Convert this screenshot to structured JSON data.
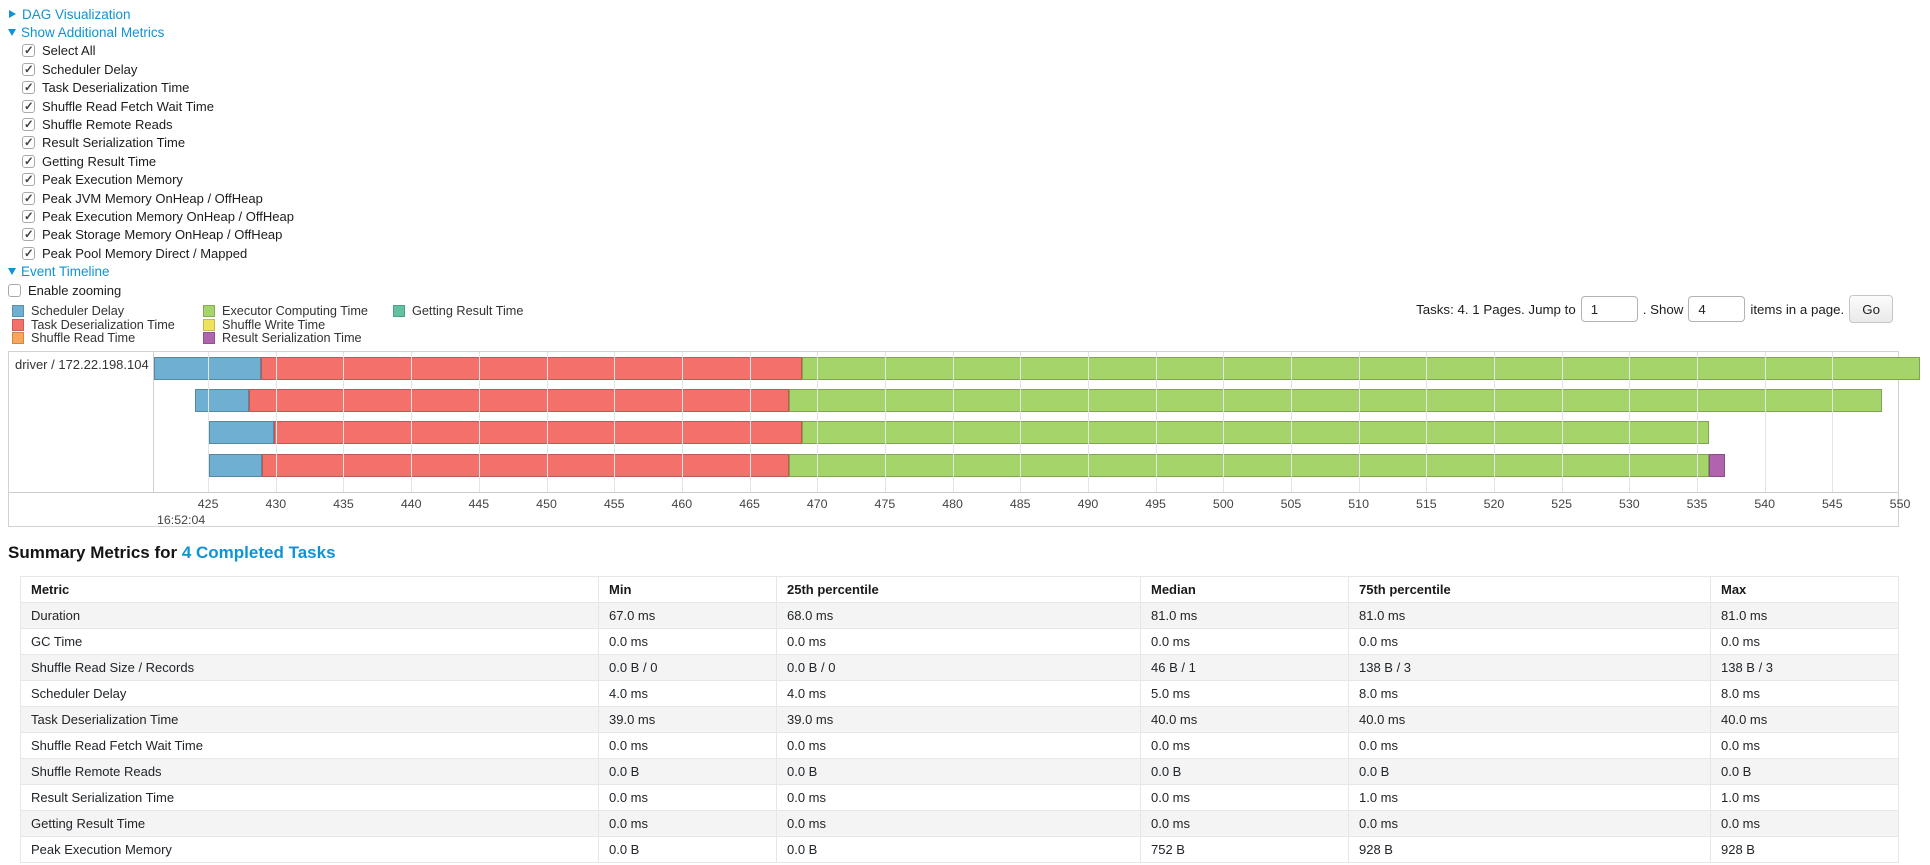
{
  "accent": {
    "link_blue": "#1093d5"
  },
  "controls": {
    "dag_toggle": {
      "label": "DAG Visualization",
      "state": "collapsed"
    },
    "metrics_toggle": {
      "label": "Show Additional Metrics",
      "state": "expanded"
    },
    "metric_checkboxes": [
      {
        "label": "Select All",
        "checked": true
      },
      {
        "label": "Scheduler Delay",
        "checked": true
      },
      {
        "label": "Task Deserialization Time",
        "checked": true
      },
      {
        "label": "Shuffle Read Fetch Wait Time",
        "checked": true
      },
      {
        "label": "Shuffle Remote Reads",
        "checked": true
      },
      {
        "label": "Result Serialization Time",
        "checked": true
      },
      {
        "label": "Getting Result Time",
        "checked": true
      },
      {
        "label": "Peak Execution Memory",
        "checked": true
      },
      {
        "label": "Peak JVM Memory OnHeap / OffHeap",
        "checked": true
      },
      {
        "label": "Peak Execution Memory OnHeap / OffHeap",
        "checked": true
      },
      {
        "label": "Peak Storage Memory OnHeap / OffHeap",
        "checked": true
      },
      {
        "label": "Peak Pool Memory Direct / Mapped",
        "checked": true
      }
    ],
    "event_timeline_toggle": {
      "label": "Event Timeline",
      "state": "expanded"
    },
    "enable_zooming": {
      "label": "Enable zooming",
      "checked": false
    }
  },
  "pagination": {
    "tasks_text": "Tasks: 4. 1 Pages. Jump to",
    "page_value": "1",
    "show_text": ". Show",
    "page_size_value": "4",
    "items_text": "items in a page.",
    "go_label": "Go"
  },
  "chart_data": {
    "type": "timeline",
    "row_label": "driver / 172.22.198.104",
    "axis": {
      "ticks": [
        425,
        430,
        435,
        440,
        445,
        450,
        455,
        460,
        465,
        470,
        475,
        480,
        485,
        490,
        495,
        500,
        505,
        510,
        515,
        520,
        525,
        530,
        535,
        540,
        545,
        550
      ],
      "first_tick_time_label": "16:52:04",
      "domain": [
        421,
        549.85
      ]
    },
    "series": [
      {
        "id": "scheduler_delay",
        "label": "Scheduler Delay",
        "color": "#6FAFD2"
      },
      {
        "id": "task_deserialization",
        "label": "Task Deserialization Time",
        "color": "#F4716B"
      },
      {
        "id": "shuffle_read",
        "label": "Shuffle Read Time",
        "color": "#F9A65A"
      },
      {
        "id": "executor_computing",
        "label": "Executor Computing Time",
        "color": "#A5D46A"
      },
      {
        "id": "shuffle_write",
        "label": "Shuffle Write Time",
        "color": "#EFE35E"
      },
      {
        "id": "result_serialization",
        "label": "Result Serialization Time",
        "color": "#B164AE"
      },
      {
        "id": "getting_result",
        "label": "Getting Result Time",
        "color": "#61C2A2"
      }
    ],
    "legend_columns": [
      [
        "scheduler_delay",
        "task_deserialization",
        "shuffle_read"
      ],
      [
        "executor_computing",
        "shuffle_write",
        "result_serialization"
      ],
      [
        "getting_result"
      ]
    ],
    "tasks": [
      {
        "segments": [
          {
            "series": "scheduler_delay",
            "start": 421.0,
            "end": 428.9
          },
          {
            "series": "task_deserialization",
            "start": 428.9,
            "end": 468.9
          },
          {
            "series": "executor_computing",
            "start": 468.9,
            "end": 551.5
          }
        ]
      },
      {
        "segments": [
          {
            "series": "scheduler_delay",
            "start": 424.0,
            "end": 428.0
          },
          {
            "series": "task_deserialization",
            "start": 428.0,
            "end": 467.9
          },
          {
            "series": "executor_computing",
            "start": 467.9,
            "end": 548.7
          }
        ]
      },
      {
        "segments": [
          {
            "series": "scheduler_delay",
            "start": 425.1,
            "end": 429.9
          },
          {
            "series": "task_deserialization",
            "start": 429.9,
            "end": 468.9
          },
          {
            "series": "executor_computing",
            "start": 468.9,
            "end": 535.9
          }
        ]
      },
      {
        "segments": [
          {
            "series": "scheduler_delay",
            "start": 425.1,
            "end": 429.0
          },
          {
            "series": "task_deserialization",
            "start": 429.0,
            "end": 467.9
          },
          {
            "series": "executor_computing",
            "start": 467.9,
            "end": 535.9
          },
          {
            "series": "result_serialization",
            "start": 535.9,
            "end": 537.1
          }
        ]
      }
    ]
  },
  "summary": {
    "title_prefix": "Summary Metrics for ",
    "title_link": "4 Completed Tasks",
    "table": {
      "headers": [
        "Metric",
        "Min",
        "25th percentile",
        "Median",
        "75th percentile",
        "Max"
      ],
      "rows": [
        [
          "Duration",
          "67.0 ms",
          "68.0 ms",
          "81.0 ms",
          "81.0 ms",
          "81.0 ms"
        ],
        [
          "GC Time",
          "0.0 ms",
          "0.0 ms",
          "0.0 ms",
          "0.0 ms",
          "0.0 ms"
        ],
        [
          "Shuffle Read Size / Records",
          "0.0 B / 0",
          "0.0 B / 0",
          "46 B / 1",
          "138 B / 3",
          "138 B / 3"
        ],
        [
          "Scheduler Delay",
          "4.0 ms",
          "4.0 ms",
          "5.0 ms",
          "8.0 ms",
          "8.0 ms"
        ],
        [
          "Task Deserialization Time",
          "39.0 ms",
          "39.0 ms",
          "40.0 ms",
          "40.0 ms",
          "40.0 ms"
        ],
        [
          "Shuffle Read Fetch Wait Time",
          "0.0 ms",
          "0.0 ms",
          "0.0 ms",
          "0.0 ms",
          "0.0 ms"
        ],
        [
          "Shuffle Remote Reads",
          "0.0 B",
          "0.0 B",
          "0.0 B",
          "0.0 B",
          "0.0 B"
        ],
        [
          "Result Serialization Time",
          "0.0 ms",
          "0.0 ms",
          "0.0 ms",
          "1.0 ms",
          "1.0 ms"
        ],
        [
          "Getting Result Time",
          "0.0 ms",
          "0.0 ms",
          "0.0 ms",
          "0.0 ms",
          "0.0 ms"
        ],
        [
          "Peak Execution Memory",
          "0.0 B",
          "0.0 B",
          "752 B",
          "928 B",
          "928 B"
        ]
      ]
    }
  }
}
